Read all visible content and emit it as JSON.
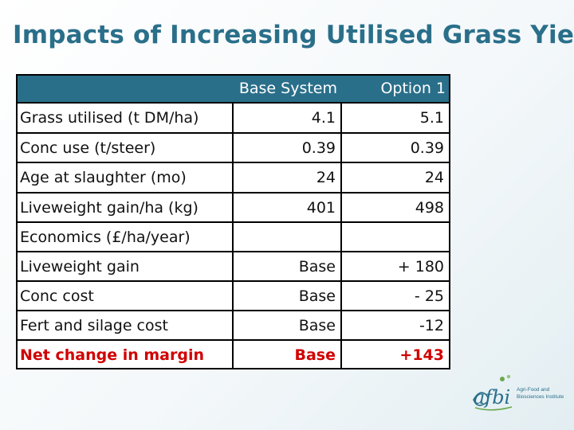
{
  "title": "Impacts of Increasing Utilised Grass Yield",
  "table": {
    "columns": [
      "Base System",
      "Option 1"
    ],
    "rows": [
      {
        "label": "Grass utilised (t DM/ha)",
        "base": "4.1",
        "option": "5.1"
      },
      {
        "label": "Conc use (t/steer)",
        "base": "0.39",
        "option": "0.39"
      },
      {
        "label": "Age at slaughter (mo)",
        "base": "24",
        "option": "24"
      },
      {
        "label": "Liveweight gain/ha (kg)",
        "base": "401",
        "option": "498"
      },
      {
        "label": "Economics (£/ha/year)",
        "base": "",
        "option": ""
      },
      {
        "label": "Liveweight gain",
        "base": "Base",
        "option": "+ 180"
      },
      {
        "label": "Conc cost",
        "base": "Base",
        "option": "- 25"
      },
      {
        "label": "Fert and silage cost",
        "base": "Base",
        "option": "-12"
      },
      {
        "label": "Net change in margin",
        "base": "Base",
        "option": "+143"
      }
    ]
  },
  "logo": {
    "name": "afbi",
    "line1": "Agri-Food and",
    "line2": "Biosciences Institute"
  },
  "colors": {
    "title": "#2a6f8a",
    "header": "#2a6f8a",
    "highlight": "#d00000"
  }
}
